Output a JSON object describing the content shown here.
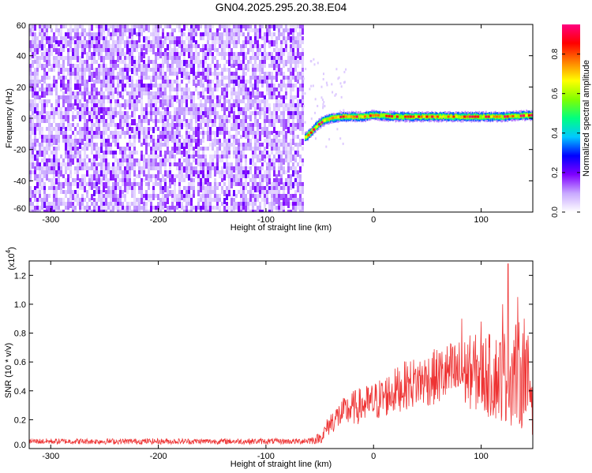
{
  "figure": {
    "title": "GN04.2025.295.20.38.E04"
  },
  "chart_data": [
    {
      "type": "heatmap",
      "xlabel": "Height of straight line (km)",
      "ylabel": "Frequency (Hz)",
      "xlim": [
        -320,
        148
      ],
      "ylim": [
        -60,
        60
      ],
      "x_ticks": [
        -300,
        -200,
        -100,
        0,
        100
      ],
      "x_tick_labels": [
        "-300",
        "-200",
        "-100",
        "0",
        "100"
      ],
      "y_ticks": [
        -60,
        -40,
        -20,
        0,
        20,
        40,
        60
      ],
      "y_tick_labels": [
        "-60",
        "-40",
        "-20",
        "0",
        "20",
        "40",
        "60"
      ],
      "noise_region_x": [
        -320,
        -66
      ],
      "signal_ridge": {
        "x": [
          -64,
          -60,
          -55,
          -50,
          -45,
          -40,
          -30,
          -20,
          -10,
          0,
          20,
          40,
          60,
          80,
          100,
          120,
          148
        ],
        "frequency_hz": [
          -12,
          -10,
          -6,
          -3,
          -1,
          0,
          1,
          1,
          1,
          2,
          1,
          1,
          1,
          1,
          1,
          1,
          2
        ]
      },
      "colorbar": {
        "label": "Normalized spectral amplitude",
        "range": [
          0,
          0.95
        ],
        "ticks": [
          0.0,
          0.2,
          0.4,
          0.6,
          0.8
        ],
        "tick_labels": [
          "0.0",
          "0.2",
          "0.4",
          "0.6",
          "0.8"
        ],
        "colors": [
          "#ffffff",
          "#c8a8ff",
          "#8000ff",
          "#0000ff",
          "#00c8ff",
          "#00ff80",
          "#80ff00",
          "#ffff00",
          "#ff8000",
          "#ff0000",
          "#ff0080"
        ]
      },
      "grid": false
    },
    {
      "type": "line",
      "xlabel": "Height of straight line (km)",
      "ylabel": "SNR (10 * v/v)",
      "y_multiplier_label": "(x10",
      "y_multiplier_exponent": "4",
      "y_multiplier_close": ")",
      "xlim": [
        -320,
        148
      ],
      "ylim": [
        0,
        1.3
      ],
      "x_ticks": [
        -300,
        -200,
        -100,
        0,
        100
      ],
      "x_tick_labels": [
        "-300",
        "-200",
        "-100",
        "0",
        "100"
      ],
      "y_ticks": [
        0.0,
        0.2,
        0.4,
        0.6,
        0.8,
        1.0,
        1.2
      ],
      "y_tick_labels": [
        "0.0",
        "0.2",
        "0.4",
        "0.6",
        "0.8",
        "1.0",
        "1.2"
      ],
      "series": [
        {
          "color": "#ee3333",
          "x": [
            -320,
            -300,
            -250,
            -200,
            -150,
            -100,
            -70,
            -55,
            -48,
            -45,
            -40,
            -30,
            -20,
            -10,
            0,
            10,
            20,
            30,
            40,
            50,
            60,
            70,
            80,
            90,
            100,
            110,
            120,
            130,
            140,
            148
          ],
          "y": [
            0.05,
            0.05,
            0.05,
            0.05,
            0.05,
            0.05,
            0.05,
            0.06,
            0.08,
            0.12,
            0.18,
            0.24,
            0.28,
            0.3,
            0.32,
            0.36,
            0.4,
            0.44,
            0.46,
            0.48,
            0.5,
            0.52,
            0.52,
            0.53,
            0.52,
            0.5,
            0.5,
            0.55,
            0.48,
            0.4
          ],
          "spread": [
            0.02,
            0.02,
            0.02,
            0.02,
            0.02,
            0.02,
            0.02,
            0.03,
            0.04,
            0.06,
            0.08,
            0.1,
            0.12,
            0.13,
            0.14,
            0.15,
            0.16,
            0.17,
            0.18,
            0.19,
            0.2,
            0.22,
            0.24,
            0.26,
            0.28,
            0.3,
            0.32,
            0.4,
            0.35,
            0.35
          ]
        }
      ],
      "peaks": [
        {
          "x": 125,
          "y": 1.28
        },
        {
          "x": 120,
          "y": 1.0
        },
        {
          "x": 134,
          "y": 1.05
        },
        {
          "x": 140,
          "y": 0.9
        },
        {
          "x": 100,
          "y": 0.88
        },
        {
          "x": 82,
          "y": 0.9
        }
      ],
      "grid": false
    }
  ]
}
